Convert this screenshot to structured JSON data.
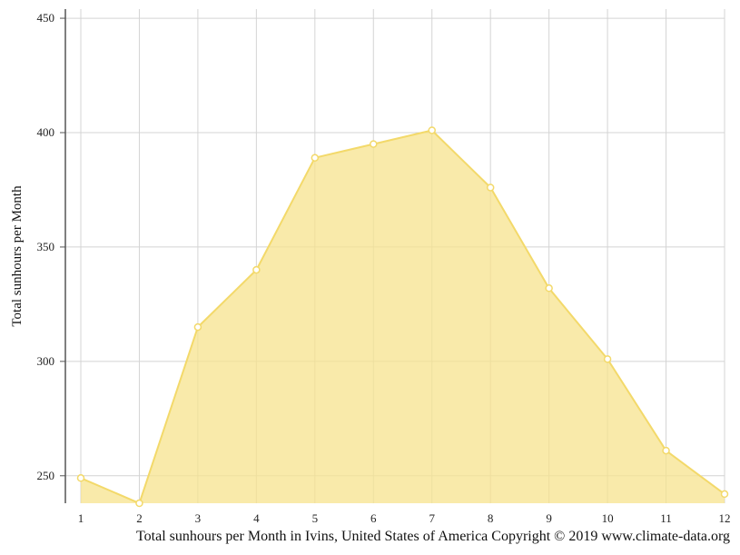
{
  "chart_data": {
    "type": "area",
    "title": "",
    "caption": "Total sunhours per Month in Ivins, United States of America Copyright © 2019 www.climate-data.org",
    "xlabel": "",
    "ylabel": "Total sunhours per Month",
    "categories": [
      "1",
      "2",
      "3",
      "4",
      "5",
      "6",
      "7",
      "8",
      "9",
      "10",
      "11",
      "12"
    ],
    "values": [
      249,
      238,
      315,
      340,
      389,
      395,
      401,
      376,
      332,
      301,
      261,
      242
    ],
    "ylim": [
      238,
      454
    ],
    "yticks": [
      250,
      300,
      350,
      400,
      450
    ],
    "grid": true,
    "legend": "none",
    "colors": {
      "fill": "#f7e38e",
      "stroke": "#f3d96a",
      "marker_fill": "#ffffff",
      "grid": "#d4d4d4",
      "axis": "#555555"
    }
  }
}
